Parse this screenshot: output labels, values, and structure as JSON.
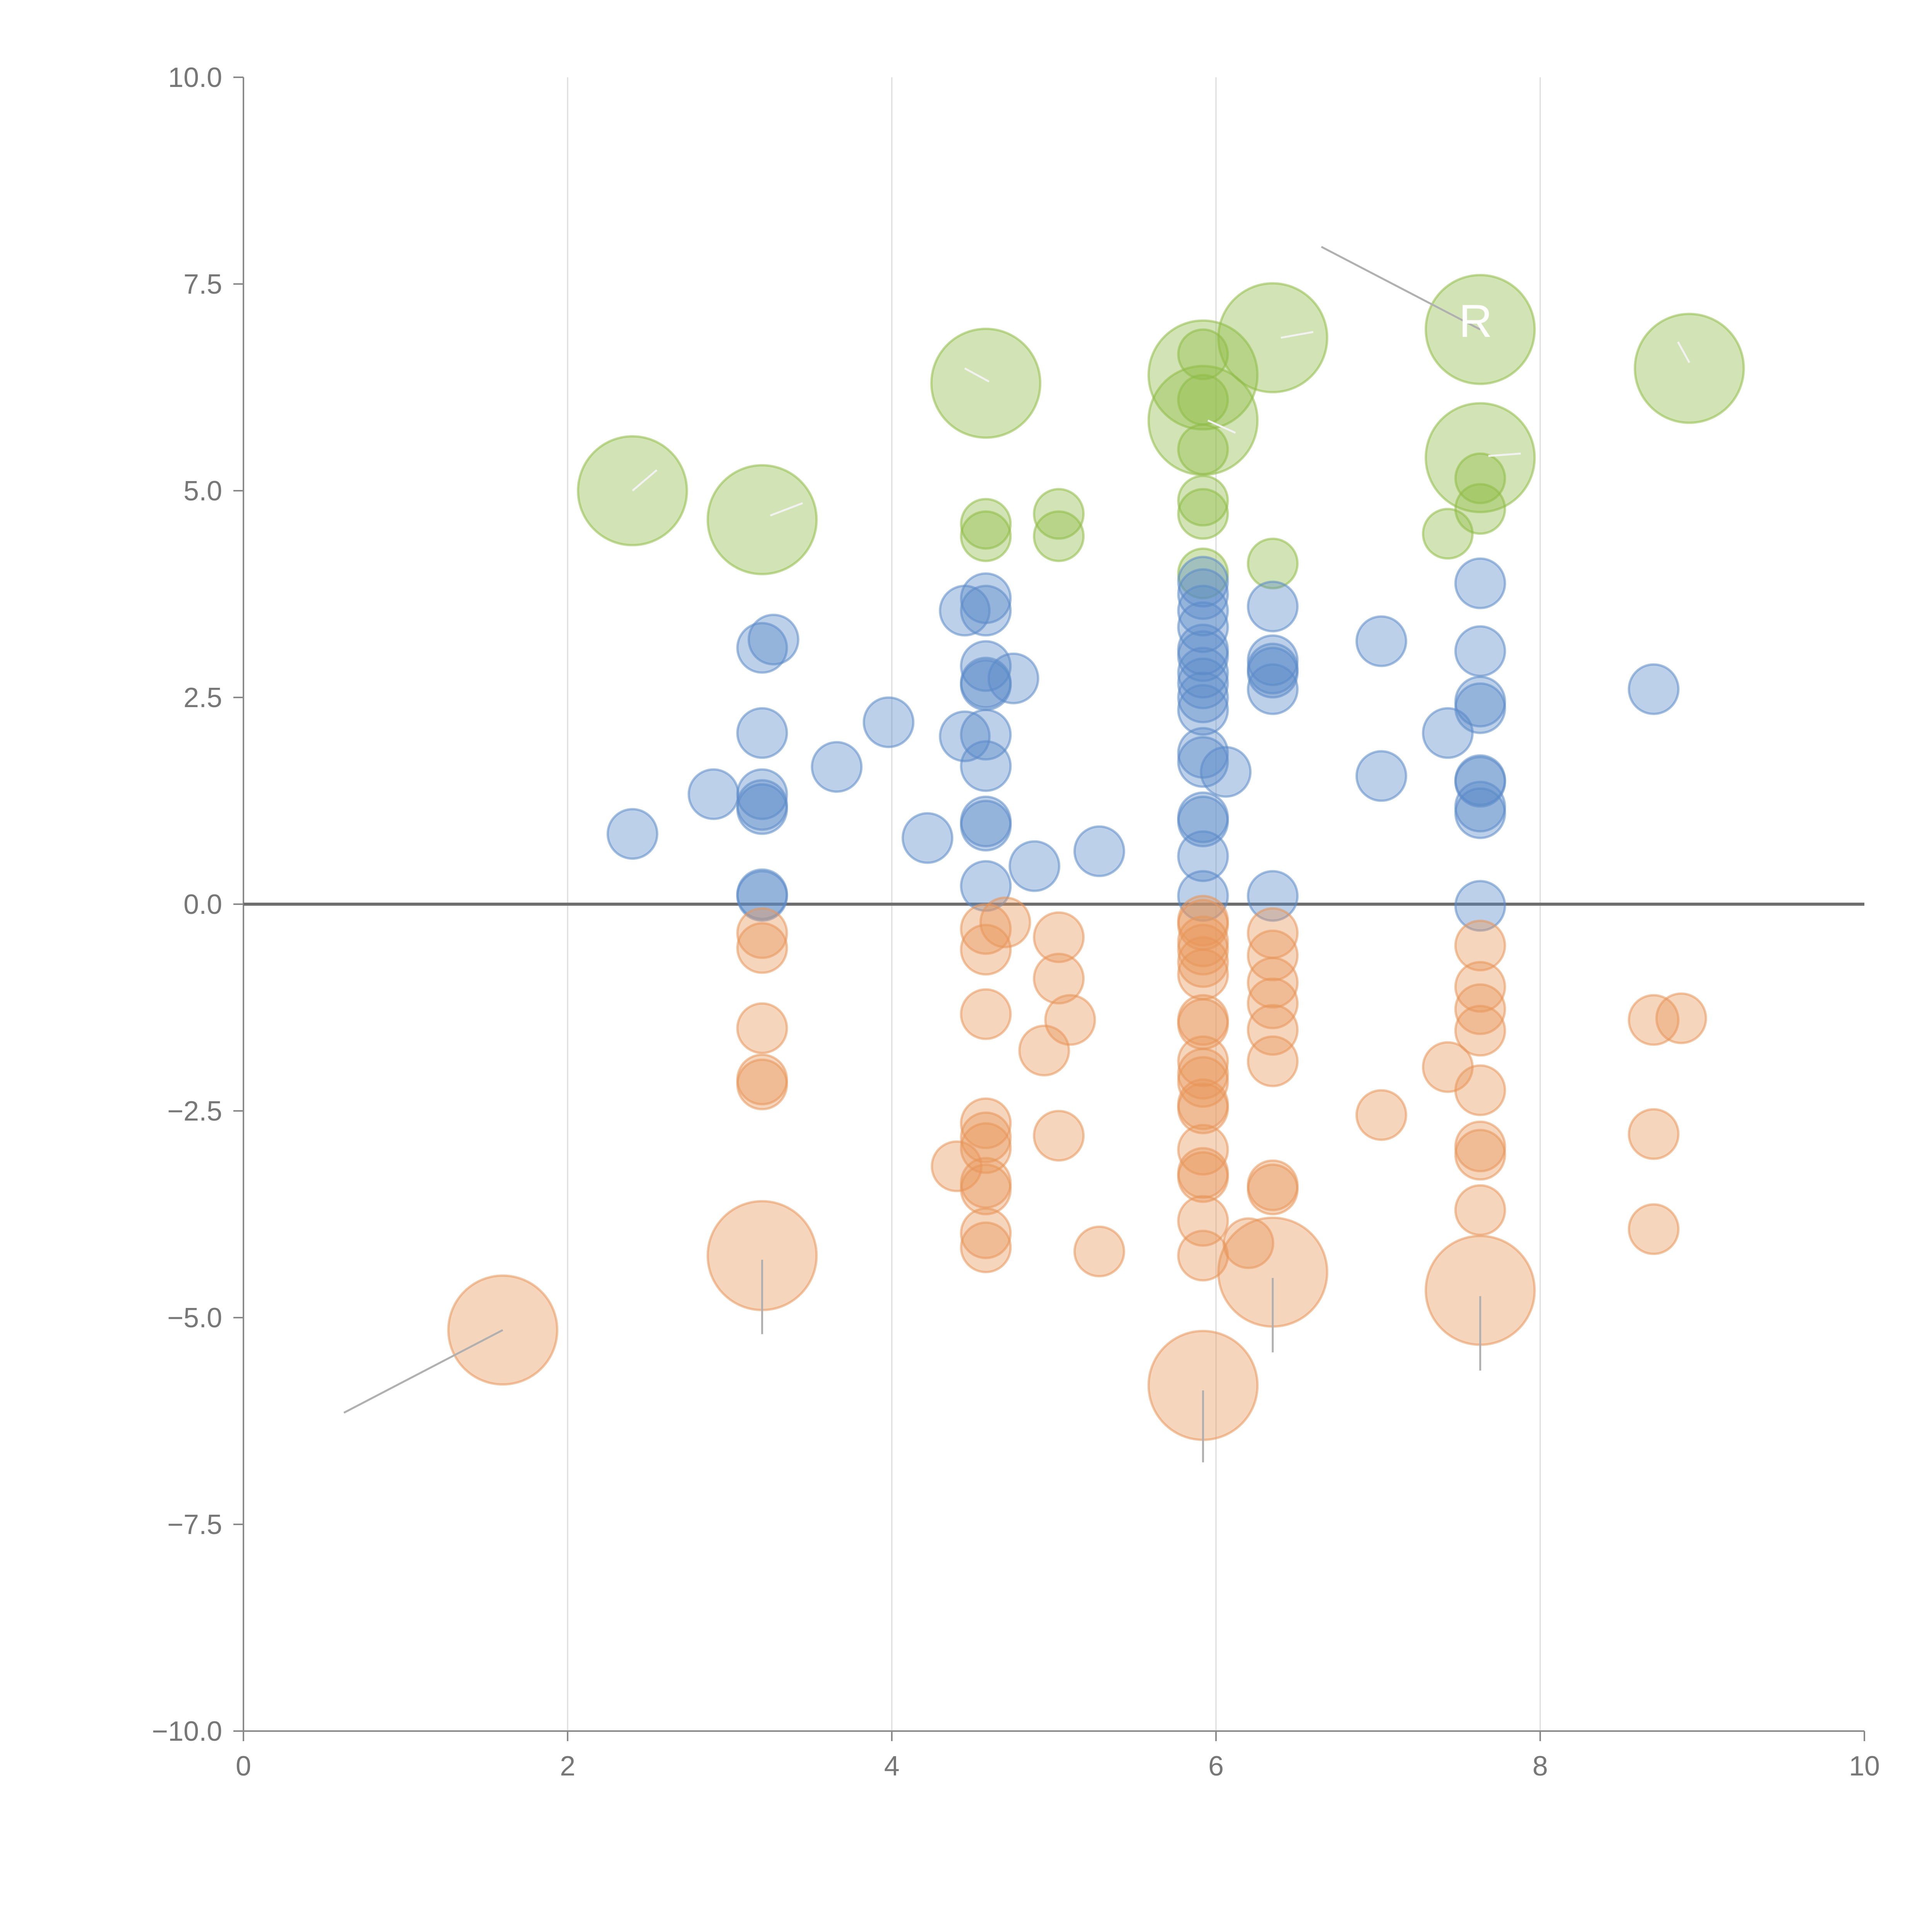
{
  "chart_data": {
    "type": "scatter",
    "title": "",
    "xlabel": "",
    "ylabel": "",
    "xlim": [
      0,
      10
    ],
    "ylim": [
      -10,
      10
    ],
    "x_ticks": [
      "0",
      "2",
      "4",
      "6",
      "8",
      "10"
    ],
    "y_ticks": [
      "10.0",
      "7.5",
      "5.0",
      "2.5",
      "0.0",
      "−2.5",
      "−5.0",
      "−7.5",
      "−10.0"
    ],
    "y_tick_values": [
      10,
      7.5,
      5,
      2.5,
      0,
      -2.5,
      -5,
      -7.5,
      -10
    ],
    "x_tick_values": [
      0,
      2,
      4,
      6,
      8,
      10
    ],
    "grid": "vertical",
    "zero_line": true,
    "annotation_text": "R",
    "series": [
      {
        "name": "green",
        "color": "#8fbc45",
        "points": [
          {
            "x": 2.4,
            "y": 5.0,
            "r": 2.2
          },
          {
            "x": 3.2,
            "y": 4.65,
            "r": 2.2
          },
          {
            "x": 4.58,
            "y": 6.3,
            "r": 2.2
          },
          {
            "x": 4.58,
            "y": 4.6,
            "r": 1.0
          },
          {
            "x": 4.58,
            "y": 4.45,
            "r": 1.0
          },
          {
            "x": 5.03,
            "y": 4.72,
            "r": 1.0
          },
          {
            "x": 5.03,
            "y": 4.45,
            "r": 1.0
          },
          {
            "x": 5.92,
            "y": 6.65,
            "r": 1.0
          },
          {
            "x": 5.92,
            "y": 6.4,
            "r": 2.2
          },
          {
            "x": 5.92,
            "y": 6.1,
            "r": 1.0
          },
          {
            "x": 5.92,
            "y": 5.85,
            "r": 2.2
          },
          {
            "x": 5.92,
            "y": 5.5,
            "r": 1.0
          },
          {
            "x": 5.92,
            "y": 4.88,
            "r": 1.0
          },
          {
            "x": 5.92,
            "y": 4.72,
            "r": 1.0
          },
          {
            "x": 5.92,
            "y": 4.0,
            "r": 1.0
          },
          {
            "x": 6.35,
            "y": 6.85,
            "r": 2.2
          },
          {
            "x": 6.35,
            "y": 4.12,
            "r": 1.0
          },
          {
            "x": 7.43,
            "y": 4.48,
            "r": 1.0
          },
          {
            "x": 7.63,
            "y": 6.95,
            "r": 2.2
          },
          {
            "x": 7.63,
            "y": 5.4,
            "r": 2.2
          },
          {
            "x": 7.63,
            "y": 5.15,
            "r": 1.0
          },
          {
            "x": 7.63,
            "y": 4.78,
            "r": 1.0
          },
          {
            "x": 8.92,
            "y": 6.48,
            "r": 2.2
          }
        ]
      },
      {
        "name": "blue",
        "color": "#5b8ac9",
        "points": [
          {
            "x": 2.4,
            "y": 0.85,
            "r": 1.0
          },
          {
            "x": 2.9,
            "y": 1.33,
            "r": 1.0
          },
          {
            "x": 3.2,
            "y": 3.1,
            "r": 1.0
          },
          {
            "x": 3.27,
            "y": 3.2,
            "r": 1.0
          },
          {
            "x": 3.2,
            "y": 2.07,
            "r": 1.0
          },
          {
            "x": 3.2,
            "y": 1.33,
            "r": 1.0
          },
          {
            "x": 3.2,
            "y": 1.2,
            "r": 1.0
          },
          {
            "x": 3.2,
            "y": 1.15,
            "r": 1.0
          },
          {
            "x": 3.2,
            "y": 0.12,
            "r": 1.0
          },
          {
            "x": 3.2,
            "y": 0.1,
            "r": 1.0
          },
          {
            "x": 3.66,
            "y": 1.66,
            "r": 1.0
          },
          {
            "x": 3.98,
            "y": 2.2,
            "r": 1.0
          },
          {
            "x": 4.22,
            "y": 0.8,
            "r": 1.0
          },
          {
            "x": 4.45,
            "y": 3.55,
            "r": 1.0
          },
          {
            "x": 4.45,
            "y": 2.03,
            "r": 1.0
          },
          {
            "x": 4.58,
            "y": 3.7,
            "r": 1.0
          },
          {
            "x": 4.58,
            "y": 3.55,
            "r": 1.0
          },
          {
            "x": 4.58,
            "y": 2.88,
            "r": 1.0
          },
          {
            "x": 4.58,
            "y": 2.68,
            "r": 1.0
          },
          {
            "x": 4.58,
            "y": 2.65,
            "r": 1.0
          },
          {
            "x": 4.58,
            "y": 2.05,
            "r": 1.0
          },
          {
            "x": 4.58,
            "y": 1.67,
            "r": 1.0
          },
          {
            "x": 4.58,
            "y": 1.0,
            "r": 1.0
          },
          {
            "x": 4.58,
            "y": 0.95,
            "r": 1.0
          },
          {
            "x": 4.58,
            "y": 0.22,
            "r": 1.0
          },
          {
            "x": 4.75,
            "y": 2.73,
            "r": 1.0
          },
          {
            "x": 4.88,
            "y": 0.46,
            "r": 1.0
          },
          {
            "x": 5.28,
            "y": 0.64,
            "r": 1.0
          },
          {
            "x": 5.92,
            "y": 3.9,
            "r": 1.0
          },
          {
            "x": 5.92,
            "y": 3.75,
            "r": 1.0
          },
          {
            "x": 5.92,
            "y": 3.55,
            "r": 1.0
          },
          {
            "x": 5.92,
            "y": 3.35,
            "r": 1.0
          },
          {
            "x": 5.92,
            "y": 3.08,
            "r": 1.0
          },
          {
            "x": 5.92,
            "y": 3.0,
            "r": 1.0
          },
          {
            "x": 5.92,
            "y": 2.8,
            "r": 1.0
          },
          {
            "x": 5.92,
            "y": 2.67,
            "r": 1.0
          },
          {
            "x": 5.92,
            "y": 2.5,
            "r": 1.0
          },
          {
            "x": 5.92,
            "y": 2.35,
            "r": 1.0
          },
          {
            "x": 5.92,
            "y": 1.83,
            "r": 1.0
          },
          {
            "x": 5.92,
            "y": 1.72,
            "r": 1.0
          },
          {
            "x": 6.06,
            "y": 1.6,
            "r": 1.0
          },
          {
            "x": 5.92,
            "y": 1.05,
            "r": 1.0
          },
          {
            "x": 5.92,
            "y": 1.0,
            "r": 1.0
          },
          {
            "x": 5.92,
            "y": 0.58,
            "r": 1.0
          },
          {
            "x": 5.92,
            "y": 0.1,
            "r": 1.0
          },
          {
            "x": 6.35,
            "y": 3.6,
            "r": 1.0
          },
          {
            "x": 6.35,
            "y": 2.95,
            "r": 1.0
          },
          {
            "x": 6.35,
            "y": 2.85,
            "r": 1.0
          },
          {
            "x": 6.35,
            "y": 2.8,
            "r": 1.0
          },
          {
            "x": 6.35,
            "y": 2.6,
            "r": 1.0
          },
          {
            "x": 6.35,
            "y": 0.1,
            "r": 1.0
          },
          {
            "x": 7.02,
            "y": 3.18,
            "r": 1.0
          },
          {
            "x": 7.02,
            "y": 1.55,
            "r": 1.0
          },
          {
            "x": 7.43,
            "y": 2.07,
            "r": 1.0
          },
          {
            "x": 7.63,
            "y": 3.88,
            "r": 1.0
          },
          {
            "x": 7.63,
            "y": 3.06,
            "r": 1.0
          },
          {
            "x": 7.63,
            "y": 2.45,
            "r": 1.0
          },
          {
            "x": 7.63,
            "y": 2.37,
            "r": 1.0
          },
          {
            "x": 7.63,
            "y": 1.5,
            "r": 1.0
          },
          {
            "x": 7.63,
            "y": 1.48,
            "r": 1.0
          },
          {
            "x": 7.63,
            "y": 1.18,
            "r": 1.0
          },
          {
            "x": 7.63,
            "y": 1.1,
            "r": 1.0
          },
          {
            "x": 7.63,
            "y": -0.02,
            "r": 1.0
          },
          {
            "x": 8.7,
            "y": 2.6,
            "r": 1.0
          }
        ]
      },
      {
        "name": "orange",
        "color": "#e8965a",
        "points": [
          {
            "x": 1.6,
            "y": -5.15,
            "r": 2.2
          },
          {
            "x": 3.2,
            "y": -0.35,
            "r": 1.0
          },
          {
            "x": 3.2,
            "y": -0.53,
            "r": 1.0
          },
          {
            "x": 3.2,
            "y": -1.5,
            "r": 1.0
          },
          {
            "x": 3.2,
            "y": -2.12,
            "r": 1.0
          },
          {
            "x": 3.2,
            "y": -2.18,
            "r": 1.0
          },
          {
            "x": 3.2,
            "y": -4.25,
            "r": 2.2
          },
          {
            "x": 4.4,
            "y": -3.17,
            "r": 1.0
          },
          {
            "x": 4.58,
            "y": -0.3,
            "r": 1.0
          },
          {
            "x": 4.7,
            "y": -0.22,
            "r": 1.0
          },
          {
            "x": 4.58,
            "y": -0.55,
            "r": 1.0
          },
          {
            "x": 4.58,
            "y": -1.33,
            "r": 1.0
          },
          {
            "x": 4.58,
            "y": -2.65,
            "r": 1.0
          },
          {
            "x": 4.58,
            "y": -2.82,
            "r": 1.0
          },
          {
            "x": 4.58,
            "y": -2.95,
            "r": 1.0
          },
          {
            "x": 4.58,
            "y": -3.37,
            "r": 1.0
          },
          {
            "x": 4.58,
            "y": -3.45,
            "r": 1.0
          },
          {
            "x": 4.58,
            "y": -3.98,
            "r": 1.0
          },
          {
            "x": 4.58,
            "y": -4.15,
            "r": 1.0
          },
          {
            "x": 4.94,
            "y": -1.77,
            "r": 1.0
          },
          {
            "x": 5.03,
            "y": -0.4,
            "r": 1.0
          },
          {
            "x": 5.03,
            "y": -0.9,
            "r": 1.0
          },
          {
            "x": 5.1,
            "y": -1.4,
            "r": 1.0
          },
          {
            "x": 5.03,
            "y": -2.8,
            "r": 1.0
          },
          {
            "x": 5.28,
            "y": -4.2,
            "r": 1.0
          },
          {
            "x": 5.92,
            "y": -0.2,
            "r": 1.0
          },
          {
            "x": 5.92,
            "y": -0.25,
            "r": 1.0
          },
          {
            "x": 5.92,
            "y": -0.45,
            "r": 1.0
          },
          {
            "x": 5.92,
            "y": -0.55,
            "r": 1.0
          },
          {
            "x": 5.92,
            "y": -0.7,
            "r": 1.0
          },
          {
            "x": 5.92,
            "y": -0.85,
            "r": 1.0
          },
          {
            "x": 5.92,
            "y": -1.4,
            "r": 1.0
          },
          {
            "x": 5.92,
            "y": -1.45,
            "r": 1.0
          },
          {
            "x": 5.92,
            "y": -1.9,
            "r": 1.0
          },
          {
            "x": 5.92,
            "y": -2.05,
            "r": 1.0
          },
          {
            "x": 5.92,
            "y": -2.15,
            "r": 1.0
          },
          {
            "x": 5.92,
            "y": -2.42,
            "r": 1.0
          },
          {
            "x": 5.92,
            "y": -2.47,
            "r": 1.0
          },
          {
            "x": 5.92,
            "y": -2.97,
            "r": 1.0
          },
          {
            "x": 5.92,
            "y": -3.25,
            "r": 1.0
          },
          {
            "x": 5.92,
            "y": -3.3,
            "r": 1.0
          },
          {
            "x": 5.92,
            "y": -3.83,
            "r": 1.0
          },
          {
            "x": 5.92,
            "y": -4.25,
            "r": 1.0
          },
          {
            "x": 5.92,
            "y": -5.82,
            "r": 2.2
          },
          {
            "x": 6.2,
            "y": -4.1,
            "r": 1.0
          },
          {
            "x": 6.35,
            "y": -0.35,
            "r": 1.0
          },
          {
            "x": 6.35,
            "y": -0.62,
            "r": 1.0
          },
          {
            "x": 6.35,
            "y": -0.95,
            "r": 1.0
          },
          {
            "x": 6.35,
            "y": -1.2,
            "r": 1.0
          },
          {
            "x": 6.35,
            "y": -1.52,
            "r": 1.0
          },
          {
            "x": 6.35,
            "y": -1.9,
            "r": 1.0
          },
          {
            "x": 6.35,
            "y": -3.4,
            "r": 1.0
          },
          {
            "x": 6.35,
            "y": -3.45,
            "r": 1.0
          },
          {
            "x": 6.35,
            "y": -4.45,
            "r": 2.2
          },
          {
            "x": 7.02,
            "y": -2.55,
            "r": 1.0
          },
          {
            "x": 7.43,
            "y": -1.97,
            "r": 1.0
          },
          {
            "x": 7.63,
            "y": -0.5,
            "r": 1.0
          },
          {
            "x": 7.63,
            "y": -1.0,
            "r": 1.0
          },
          {
            "x": 7.63,
            "y": -1.27,
            "r": 1.0
          },
          {
            "x": 7.63,
            "y": -1.53,
            "r": 1.0
          },
          {
            "x": 7.63,
            "y": -2.25,
            "r": 1.0
          },
          {
            "x": 7.63,
            "y": -2.93,
            "r": 1.0
          },
          {
            "x": 7.63,
            "y": -3.03,
            "r": 1.0
          },
          {
            "x": 7.63,
            "y": -3.7,
            "r": 1.0
          },
          {
            "x": 7.63,
            "y": -4.67,
            "r": 2.2
          },
          {
            "x": 8.7,
            "y": -1.4,
            "r": 1.0
          },
          {
            "x": 8.87,
            "y": -1.38,
            "r": 1.0
          },
          {
            "x": 8.7,
            "y": -2.78,
            "r": 1.0
          },
          {
            "x": 8.7,
            "y": -3.93,
            "r": 1.0
          }
        ]
      }
    ]
  }
}
